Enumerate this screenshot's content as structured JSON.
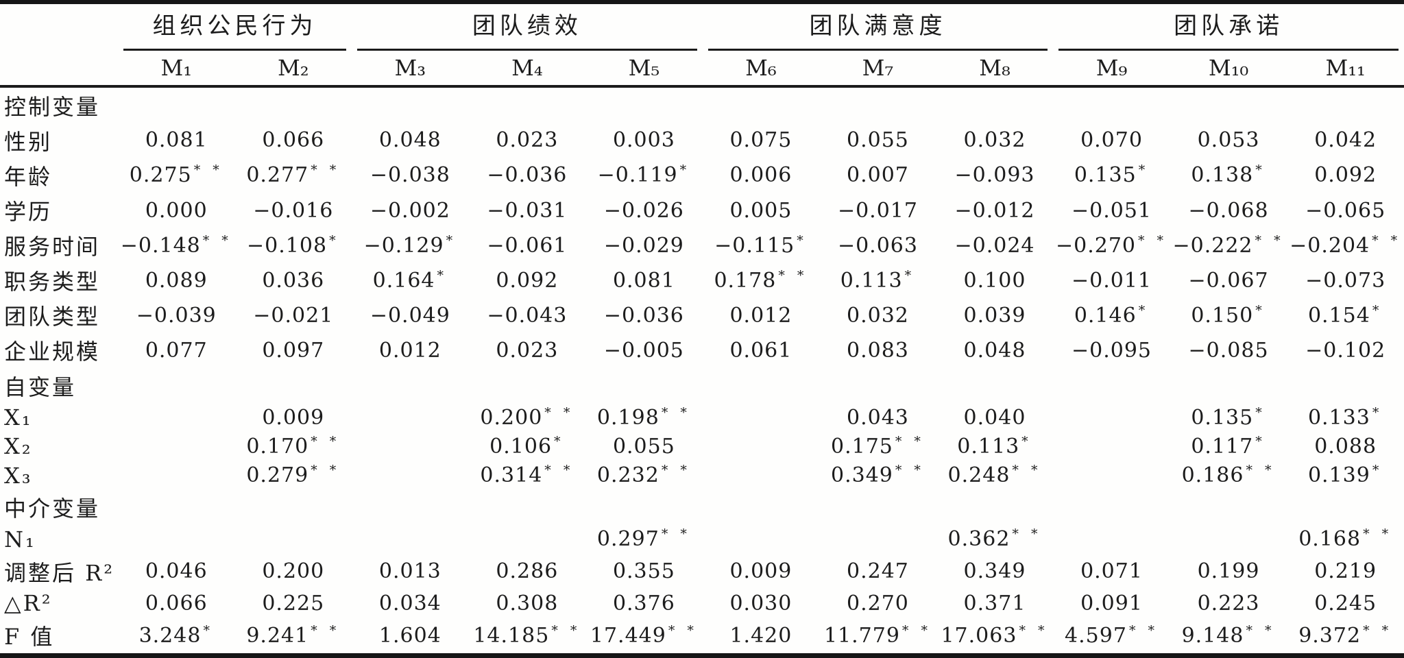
{
  "table": {
    "groups": [
      {
        "label": "组织公民行为",
        "span": 2
      },
      {
        "label": "团队绩效",
        "span": 3
      },
      {
        "label": "团队满意度",
        "span": 3
      },
      {
        "label": "团队承诺",
        "span": 3
      }
    ],
    "model_headers": [
      "M₁",
      "M₂",
      "M₃",
      "M₄",
      "M₅",
      "M₆",
      "M₇",
      "M₈",
      "M₉",
      "M₁₀",
      "M₁₁"
    ],
    "rows": [
      {
        "label": "控制变量",
        "type": "section",
        "values": [
          "",
          "",
          "",
          "",
          "",
          "",
          "",
          "",
          "",
          "",
          ""
        ]
      },
      {
        "label": "性别",
        "type": "data",
        "values": [
          "0.081",
          "0.066",
          "0.048",
          "0.023",
          "0.003",
          "0.075",
          "0.055",
          "0.032",
          "0.070",
          "0.053",
          "0.042"
        ]
      },
      {
        "label": "年龄",
        "type": "data",
        "values": [
          "0.275**",
          "0.277**",
          "−0.038",
          "−0.036",
          "−0.119*",
          "0.006",
          "0.007",
          "−0.093",
          "0.135*",
          "0.138*",
          "0.092"
        ]
      },
      {
        "label": "学历",
        "type": "data",
        "values": [
          "0.000",
          "−0.016",
          "−0.002",
          "−0.031",
          "−0.026",
          "0.005",
          "−0.017",
          "−0.012",
          "−0.051",
          "−0.068",
          "−0.065"
        ]
      },
      {
        "label": "服务时间",
        "type": "data",
        "values": [
          "−0.148**",
          "−0.108*",
          "−0.129*",
          "−0.061",
          "−0.029",
          "−0.115*",
          "−0.063",
          "−0.024",
          "−0.270**",
          "−0.222**",
          "−0.204**"
        ]
      },
      {
        "label": "职务类型",
        "type": "data",
        "values": [
          "0.089",
          "0.036",
          "0.164*",
          "0.092",
          "0.081",
          "0.178**",
          "0.113*",
          "0.100",
          "−0.011",
          "−0.067",
          "−0.073"
        ]
      },
      {
        "label": "团队类型",
        "type": "data",
        "values": [
          "−0.039",
          "−0.021",
          "−0.049",
          "−0.043",
          "−0.036",
          "0.012",
          "0.032",
          "0.039",
          "0.146*",
          "0.150*",
          "0.154*"
        ]
      },
      {
        "label": "企业规模",
        "type": "data",
        "values": [
          "0.077",
          "0.097",
          "0.012",
          "0.023",
          "−0.005",
          "0.061",
          "0.083",
          "0.048",
          "−0.095",
          "−0.085",
          "−0.102"
        ]
      },
      {
        "label": "自变量",
        "type": "section",
        "values": [
          "",
          "",
          "",
          "",
          "",
          "",
          "",
          "",
          "",
          "",
          ""
        ]
      },
      {
        "label": "X₁",
        "type": "data",
        "values": [
          "",
          "0.009",
          "",
          "0.200**",
          "0.198**",
          "",
          "0.043",
          "0.040",
          "",
          "0.135*",
          "0.133*"
        ]
      },
      {
        "label": "X₂",
        "type": "data",
        "values": [
          "",
          "0.170**",
          "",
          "0.106*",
          "0.055",
          "",
          "0.175**",
          "0.113*",
          "",
          "0.117*",
          "0.088"
        ]
      },
      {
        "label": "X₃",
        "type": "data",
        "values": [
          "",
          "0.279**",
          "",
          "0.314**",
          "0.232**",
          "",
          "0.349**",
          "0.248**",
          "",
          "0.186**",
          "0.139*"
        ]
      },
      {
        "label": "中介变量",
        "type": "section",
        "values": [
          "",
          "",
          "",
          "",
          "",
          "",
          "",
          "",
          "",
          "",
          ""
        ]
      },
      {
        "label": "N₁",
        "type": "data",
        "values": [
          "",
          "",
          "",
          "",
          "0.297**",
          "",
          "",
          "0.362**",
          "",
          "",
          "0.168**"
        ]
      },
      {
        "label": "调整后 R²",
        "type": "data",
        "values": [
          "0.046",
          "0.200",
          "0.013",
          "0.286",
          "0.355",
          "0.009",
          "0.247",
          "0.349",
          "0.071",
          "0.199",
          "0.219"
        ]
      },
      {
        "label": "△R²",
        "type": "data",
        "values": [
          "0.066",
          "0.225",
          "0.034",
          "0.308",
          "0.376",
          "0.030",
          "0.270",
          "0.371",
          "0.091",
          "0.223",
          "0.245"
        ]
      },
      {
        "label": "F 值",
        "type": "data",
        "values": [
          "3.248*",
          "9.241**",
          "1.604",
          "14.185**",
          "17.449**",
          "1.420",
          "11.779**",
          "17.063**",
          "4.597**",
          "9.148**",
          "9.372**"
        ]
      }
    ]
  }
}
